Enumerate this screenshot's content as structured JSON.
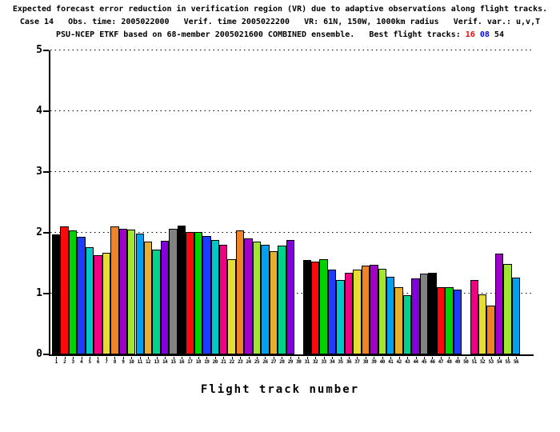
{
  "header": {
    "line1": "Expected forecast error reduction in verification region (VR) due to adaptive observations along flight tracks.",
    "line2": "Case 14   Obs. time: 2005022000   Verif. time 2005022200   VR: 61N, 150W, 1000km radius   Verif. var.: u,v,T",
    "line3_prefix": "PSU-NCEP ETKF based on 68-member 2005021600 COMBINED ensemble.   Best flight tracks: ",
    "best_tracks": [
      {
        "label": "16",
        "color": "#ff0000"
      },
      {
        "label": "08",
        "color": "#0000ff"
      },
      {
        "label": "54",
        "color": "#000000"
      }
    ]
  },
  "chart_data": {
    "type": "bar",
    "title": "Expected forecast error reduction in verification region (VR) due to adaptive observations along flight tracks.",
    "subtitle1": "Case 14   Obs. time: 2005022000   Verif. time 2005022200   VR: 61N, 150W, 1000km radius   Verif. var.: u,v,T",
    "subtitle2": "PSU-NCEP ETKF based on 68-member 2005021600 COMBINED ensemble.   Best flight tracks: 16 08 54",
    "xlabel": "Flight track number",
    "ylabel": "",
    "ylim": [
      0,
      5
    ],
    "yticks": [
      0,
      1,
      2,
      3,
      4,
      5
    ],
    "grid": {
      "horizontal": "dotted",
      "levels": [
        1,
        2,
        3,
        4,
        5
      ]
    },
    "legend": "none",
    "categories": [
      "1",
      "2",
      "3",
      "4",
      "5",
      "6",
      "7",
      "8",
      "9",
      "10",
      "11",
      "12",
      "13",
      "14",
      "15",
      "16",
      "17",
      "18",
      "19",
      "20",
      "21",
      "22",
      "23",
      "24",
      "25",
      "26",
      "27",
      "28",
      "29",
      "30",
      "31",
      "32",
      "33",
      "34",
      "35",
      "36",
      "37",
      "38",
      "39",
      "40",
      "41",
      "42",
      "43",
      "44",
      "45",
      "46",
      "47",
      "48",
      "49",
      "50",
      "51",
      "52",
      "53",
      "54",
      "55",
      "56"
    ],
    "values": [
      1.97,
      2.1,
      2.04,
      1.93,
      1.76,
      1.63,
      1.67,
      2.1,
      2.07,
      2.05,
      1.99,
      1.86,
      1.72,
      1.87,
      2.07,
      2.12,
      2.01,
      2.01,
      1.95,
      1.88,
      1.8,
      1.56,
      2.04,
      1.91,
      1.86,
      1.8,
      1.7,
      1.79,
      1.88,
      0,
      1.55,
      1.52,
      1.57,
      1.4,
      1.23,
      1.34,
      1.39,
      1.46,
      1.48,
      1.41,
      1.28,
      1.11,
      0.98,
      1.25,
      1.33,
      1.34,
      1.11,
      1.1,
      1.07,
      0,
      1.23,
      0.99,
      0.8,
      1.66,
      1.49,
      1.26
    ],
    "missing_tracks": [
      30,
      50
    ],
    "bar_color_cycle": [
      "#000000",
      "#fa0a0a",
      "#00d200",
      "#1e3cff",
      "#00c8c8",
      "#f00082",
      "#e6dc32",
      "#f08228",
      "#a000c8",
      "#a0e632",
      "#00a0f0",
      "#e6af2d",
      "#00d28c",
      "#8200dc",
      "#828282"
    ],
    "bar_outline_color": "#000000"
  }
}
